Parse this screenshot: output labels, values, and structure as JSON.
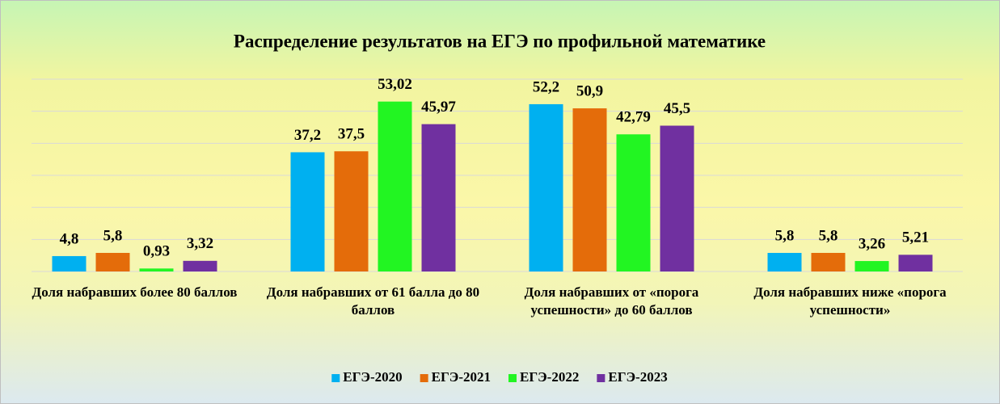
{
  "chart_data": {
    "type": "bar",
    "title": "Распределение результатов на ЕГЭ по профильной математике",
    "categories": [
      "Доля набравших более 80 баллов",
      "Доля набравших от 61 балла до 80 баллов",
      "Доля набравших от «порога успешности» до 60 баллов",
      "Доля набравших ниже «порога успешности»"
    ],
    "series": [
      {
        "name": "ЕГЭ-2020",
        "color": "#00b0f0",
        "values": [
          4.8,
          37.2,
          52.2,
          5.8
        ],
        "value_labels": [
          "4,8",
          "37,2",
          "52,2",
          "5,8"
        ]
      },
      {
        "name": "ЕГЭ-2021",
        "color": "#e46c0a",
        "values": [
          5.8,
          37.5,
          50.9,
          5.8
        ],
        "value_labels": [
          "5,8",
          "37,5",
          "50,9",
          "5,8"
        ]
      },
      {
        "name": "ЕГЭ-2022",
        "color": "#22f522",
        "values": [
          0.93,
          53.02,
          42.79,
          3.26
        ],
        "value_labels": [
          "0,93",
          "53,02",
          "42,79",
          "3,26"
        ]
      },
      {
        "name": "ЕГЭ-2023",
        "color": "#7030a0",
        "values": [
          3.32,
          45.97,
          45.5,
          5.21
        ],
        "value_labels": [
          "3,32",
          "45,97",
          "45,5",
          "5,21"
        ]
      }
    ],
    "ylim": [
      0,
      60
    ],
    "yticks": [
      0,
      10,
      20,
      30,
      40,
      50,
      60
    ],
    "grid": true,
    "legend": "bottom"
  }
}
